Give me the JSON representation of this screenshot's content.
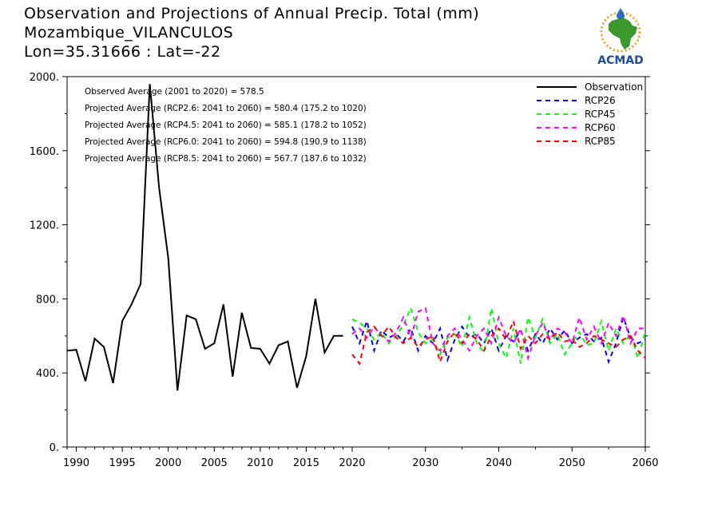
{
  "header": {
    "title_line1": "Observation and Projections of Annual Precip. Total (mm)",
    "title_line2": "Mozambique_VILANCULOS",
    "title_line3": "Lon=35.31666 : Lat=-22"
  },
  "logo": {
    "text": "ACMAD"
  },
  "chart_data": {
    "type": "line",
    "ylim": [
      0,
      2000
    ],
    "y_ticks": [
      0,
      400,
      800,
      1200,
      1600,
      2000
    ],
    "y_tick_labels": [
      "0.",
      "400.",
      "800.",
      "1200.",
      "1600.",
      "2000."
    ],
    "x_ticks_obs": [
      1990,
      1995,
      2000,
      2005,
      2010,
      2015,
      2020
    ],
    "x_ticks_proj": [
      2030,
      2040,
      2050,
      2060
    ],
    "x_tick_labels_obs": [
      "1990",
      "1995",
      "2000",
      "2005",
      "2010",
      "2015",
      "2020"
    ],
    "x_tick_labels_proj": [
      "2030",
      "2040",
      "2050",
      "2060"
    ],
    "x_obs_range": [
      1989,
      2020
    ],
    "x_proj_range": [
      2020,
      2060
    ],
    "annotations": [
      "Observed Average (2001 to 2020) = 578.5",
      "Projected Average (RCP2.6: 2041 to 2060) = 580.4 (175.2 to 1020)",
      "Projected Average (RCP4.5: 2041 to 2060) = 585.1 (178.2 to 1052)",
      "Projected Average (RCP6.0: 2041 to 2060) = 594.8 (190.9 to 1138)",
      "Projected Average (RCP8.5: 2041 to 2060) = 567.7 (187.6 to 1032)"
    ],
    "legend_position": "top-right",
    "observation": {
      "name": "Observation",
      "color": "#000000",
      "x": [
        1989,
        1990,
        1991,
        1992,
        1993,
        1994,
        1995,
        1996,
        1997,
        1998,
        1999,
        2000,
        2001,
        2002,
        2003,
        2004,
        2005,
        2006,
        2007,
        2008,
        2009,
        2010,
        2011,
        2012,
        2013,
        2014,
        2015,
        2016,
        2017,
        2018,
        2019
      ],
      "values": [
        520,
        525,
        355,
        585,
        540,
        345,
        680,
        770,
        880,
        1960,
        1400,
        1020,
        305,
        710,
        690,
        530,
        560,
        770,
        380,
        725,
        535,
        530,
        450,
        550,
        570,
        320,
        490,
        800,
        510,
        600,
        600
      ]
    },
    "series": [
      {
        "name": "RCP26",
        "color": "#0000ff",
        "x": [
          2020,
          2021,
          2022,
          2023,
          2024,
          2025,
          2026,
          2027,
          2028,
          2029,
          2030,
          2031,
          2032,
          2033,
          2034,
          2035,
          2036,
          2037,
          2038,
          2039,
          2040,
          2041,
          2042,
          2043,
          2044,
          2045,
          2046,
          2047,
          2048,
          2049,
          2050,
          2051,
          2052,
          2053,
          2054,
          2055,
          2056,
          2057,
          2058,
          2059,
          2060
        ],
        "values": [
          650,
          560,
          680,
          520,
          630,
          590,
          610,
          570,
          640,
          520,
          600,
          560,
          640,
          470,
          580,
          650,
          590,
          610,
          560,
          640,
          520,
          600,
          570,
          630,
          520,
          610,
          560,
          640,
          580,
          630,
          560,
          590,
          610,
          570,
          590,
          460,
          560,
          700,
          590,
          560,
          580
        ]
      },
      {
        "name": "RCP45",
        "color": "#00ff00",
        "x": [
          2020,
          2021,
          2022,
          2023,
          2024,
          2025,
          2026,
          2027,
          2028,
          2029,
          2030,
          2031,
          2032,
          2033,
          2034,
          2035,
          2036,
          2037,
          2038,
          2039,
          2040,
          2041,
          2042,
          2043,
          2044,
          2045,
          2046,
          2047,
          2048,
          2049,
          2050,
          2051,
          2052,
          2053,
          2054,
          2055,
          2056,
          2057,
          2058,
          2059,
          2060
        ],
        "values": [
          690,
          670,
          640,
          580,
          620,
          560,
          600,
          660,
          750,
          620,
          560,
          580,
          500,
          590,
          610,
          540,
          700,
          560,
          510,
          750,
          560,
          480,
          640,
          450,
          700,
          590,
          690,
          560,
          610,
          500,
          560,
          620,
          550,
          560,
          680,
          520,
          640,
          560,
          610,
          480,
          620
        ]
      },
      {
        "name": "RCP60",
        "color": "#ff00ff",
        "x": [
          2020,
          2021,
          2022,
          2023,
          2024,
          2025,
          2026,
          2027,
          2028,
          2029,
          2030,
          2031,
          2032,
          2033,
          2034,
          2035,
          2036,
          2037,
          2038,
          2039,
          2040,
          2041,
          2042,
          2043,
          2044,
          2045,
          2046,
          2047,
          2048,
          2049,
          2050,
          2051,
          2052,
          2053,
          2054,
          2055,
          2056,
          2057,
          2058,
          2059,
          2060
        ],
        "values": [
          610,
          640,
          590,
          650,
          600,
          570,
          620,
          700,
          590,
          730,
          750,
          560,
          520,
          600,
          640,
          580,
          520,
          600,
          640,
          560,
          700,
          600,
          560,
          640,
          480,
          600,
          670,
          580,
          640,
          620,
          560,
          700,
          580,
          650,
          560,
          670,
          600,
          710,
          560,
          640,
          640
        ]
      },
      {
        "name": "RCP85",
        "color": "#ff0000",
        "x": [
          2020,
          2021,
          2022,
          2023,
          2024,
          2025,
          2026,
          2027,
          2028,
          2029,
          2030,
          2031,
          2032,
          2033,
          2034,
          2035,
          2036,
          2037,
          2038,
          2039,
          2040,
          2041,
          2042,
          2043,
          2044,
          2045,
          2046,
          2047,
          2048,
          2049,
          2050,
          2051,
          2052,
          2053,
          2054,
          2055,
          2056,
          2057,
          2058,
          2059,
          2060
        ],
        "values": [
          500,
          450,
          620,
          650,
          600,
          650,
          590,
          560,
          590,
          540,
          580,
          600,
          460,
          570,
          620,
          560,
          610,
          580,
          520,
          600,
          640,
          580,
          680,
          530,
          600,
          560,
          610,
          580,
          620,
          570,
          580,
          540,
          560,
          600,
          580,
          560,
          540,
          580,
          600,
          520,
          480
        ]
      }
    ]
  }
}
